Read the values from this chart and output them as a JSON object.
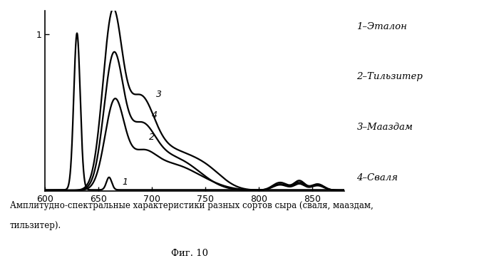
{
  "x_min": 600,
  "x_max": 880,
  "y_min": 0,
  "y_max": 1.15,
  "x_ticks": [
    600,
    650,
    700,
    750,
    800,
    850
  ],
  "x_tick_labels": [
    "600",
    "650",
    "700",
    "750",
    "800",
    "850"
  ],
  "y_tick_val": 1.0,
  "y_tick_label": "1",
  "bg_color": "#ffffff",
  "line_color": "#000000",
  "legend_texts": [
    "1–Эталон",
    "2–Тильзитер",
    "3–Мааздам",
    "4–Сваля"
  ],
  "caption_line1": "Амплитудно-спектральные характеристики разных сортов сыра (сваля, мааздам,",
  "caption_line2": "тильзитер).",
  "fig_label": "Фиг. 10"
}
